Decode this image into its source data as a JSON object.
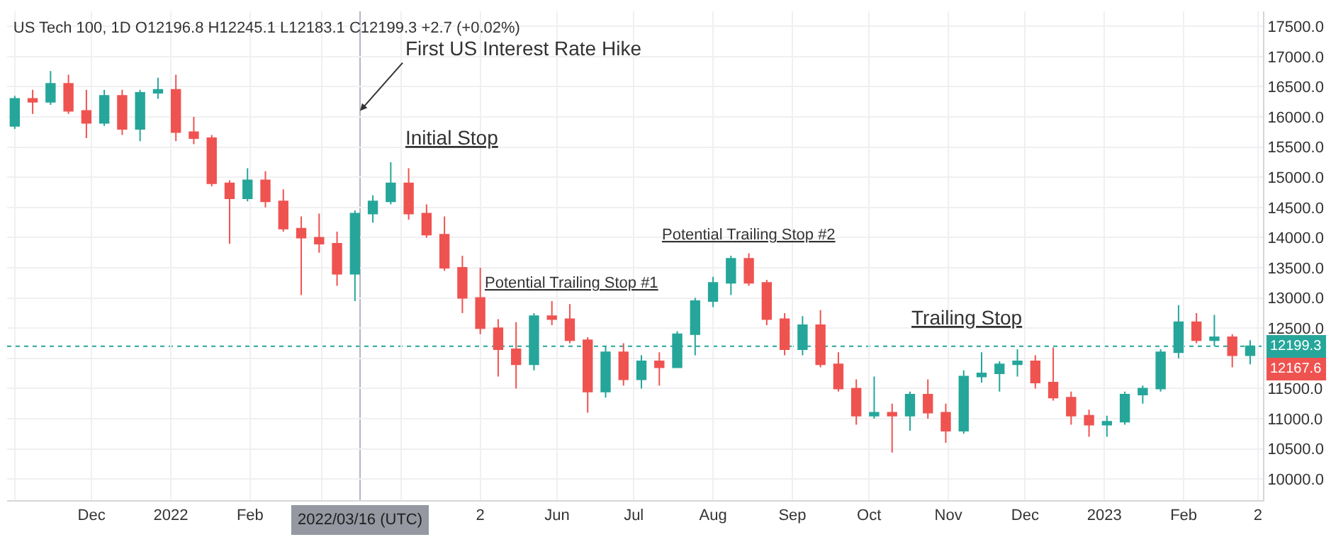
{
  "chart_data": {
    "type": "candlestick",
    "title": "US Tech 100, 1D O12196.8 H12245.1 L12183.1 C12199.3 +2.7 (+0.02%)",
    "x": [
      "2021-11-01",
      "2021-11-08",
      "2021-11-15",
      "2021-11-22",
      "2021-11-29",
      "2021-12-06",
      "2021-12-13",
      "2021-12-20",
      "2021-12-27",
      "2022-01-03",
      "2022-01-10",
      "2022-01-17",
      "2022-01-24",
      "2022-01-31",
      "2022-02-07",
      "2022-02-14",
      "2022-02-21",
      "2022-02-28",
      "2022-03-07",
      "2022-03-14",
      "2022-03-21",
      "2022-03-28",
      "2022-04-04",
      "2022-04-11",
      "2022-04-18",
      "2022-04-25",
      "2022-05-02",
      "2022-05-09",
      "2022-05-16",
      "2022-05-23",
      "2022-05-30",
      "2022-06-06",
      "2022-06-13",
      "2022-06-20",
      "2022-06-27",
      "2022-07-04",
      "2022-07-11",
      "2022-07-18",
      "2022-07-25",
      "2022-08-01",
      "2022-08-08",
      "2022-08-15",
      "2022-08-22",
      "2022-08-29",
      "2022-09-05",
      "2022-09-12",
      "2022-09-19",
      "2022-09-26",
      "2022-10-03",
      "2022-10-10",
      "2022-10-17",
      "2022-10-24",
      "2022-10-31",
      "2022-11-07",
      "2022-11-14",
      "2022-11-21",
      "2022-11-28",
      "2022-12-05",
      "2022-12-12",
      "2022-12-19",
      "2022-12-26",
      "2023-01-02",
      "2023-01-09",
      "2023-01-16",
      "2023-01-23",
      "2023-01-30",
      "2023-02-06",
      "2023-02-13",
      "2023-02-20",
      "2023-02-27"
    ],
    "ohlc": [
      [
        15850,
        16350,
        15800,
        16300
      ],
      [
        16300,
        16450,
        16050,
        16250
      ],
      [
        16250,
        16760,
        16200,
        16550
      ],
      [
        16550,
        16700,
        16050,
        16100
      ],
      [
        16100,
        16450,
        15650,
        15900
      ],
      [
        15900,
        16450,
        15850,
        16350
      ],
      [
        16350,
        16450,
        15700,
        15800
      ],
      [
        15800,
        16450,
        15600,
        16400
      ],
      [
        16400,
        16650,
        16300,
        16450
      ],
      [
        16450,
        16700,
        15600,
        15750
      ],
      [
        15750,
        16000,
        15550,
        15650
      ],
      [
        15650,
        15700,
        14850,
        14900
      ],
      [
        14900,
        14950,
        13900,
        14650
      ],
      [
        14650,
        15150,
        14600,
        14950
      ],
      [
        14950,
        15100,
        14500,
        14600
      ],
      [
        14600,
        14800,
        14100,
        14150
      ],
      [
        14150,
        14350,
        13050,
        14000
      ],
      [
        14000,
        14400,
        13750,
        13900
      ],
      [
        13900,
        14100,
        13200,
        13400
      ],
      [
        13400,
        14450,
        12950,
        14400
      ],
      [
        14400,
        14700,
        14250,
        14600
      ],
      [
        14600,
        15250,
        14550,
        14900
      ],
      [
        14900,
        15150,
        14300,
        14400
      ],
      [
        14400,
        14550,
        14000,
        14050
      ],
      [
        14050,
        14350,
        13450,
        13500
      ],
      [
        13500,
        13700,
        12750,
        13000
      ],
      [
        13000,
        13500,
        12400,
        12500
      ],
      [
        12500,
        12650,
        11700,
        12150
      ],
      [
        12150,
        12600,
        11500,
        11900
      ],
      [
        11900,
        12750,
        11800,
        12700
      ],
      [
        12700,
        12950,
        12550,
        12650
      ],
      [
        12650,
        12900,
        12250,
        12300
      ],
      [
        12300,
        12350,
        11100,
        11450
      ],
      [
        11450,
        12200,
        11350,
        12100
      ],
      [
        12100,
        12250,
        11550,
        11650
      ],
      [
        11650,
        12050,
        11500,
        11950
      ],
      [
        11950,
        12100,
        11550,
        11850
      ],
      [
        11850,
        12450,
        11850,
        12400
      ],
      [
        12400,
        13000,
        12050,
        12950
      ],
      [
        12950,
        13350,
        12850,
        13250
      ],
      [
        13250,
        13700,
        13050,
        13650
      ],
      [
        13650,
        13740,
        13200,
        13250
      ],
      [
        13250,
        13300,
        12550,
        12650
      ],
      [
        12650,
        12750,
        12050,
        12150
      ],
      [
        12150,
        12700,
        12050,
        12550
      ],
      [
        12550,
        12800,
        11850,
        11900
      ],
      [
        11900,
        12100,
        11450,
        11500
      ],
      [
        11500,
        11650,
        10900,
        11050
      ],
      [
        11050,
        11700,
        11000,
        11100
      ],
      [
        11100,
        11250,
        10440,
        11050
      ],
      [
        11050,
        11450,
        10800,
        11400
      ],
      [
        11400,
        11650,
        11000,
        11100
      ],
      [
        11100,
        11250,
        10600,
        10800
      ],
      [
        10800,
        11800,
        10750,
        11700
      ],
      [
        11700,
        12100,
        11600,
        11750
      ],
      [
        11750,
        11950,
        11450,
        11900
      ],
      [
        11900,
        12150,
        11700,
        11950
      ],
      [
        11950,
        12050,
        11500,
        11600
      ],
      [
        11600,
        12180,
        11300,
        11350
      ],
      [
        11350,
        11450,
        10900,
        11050
      ],
      [
        11050,
        11150,
        10700,
        10900
      ],
      [
        10900,
        11050,
        10700,
        10950
      ],
      [
        10950,
        11450,
        10900,
        11400
      ],
      [
        11400,
        11550,
        11250,
        11500
      ],
      [
        11500,
        12150,
        11450,
        12100
      ],
      [
        12100,
        12880,
        12000,
        12600
      ],
      [
        12600,
        12750,
        12250,
        12300
      ],
      [
        12300,
        12720,
        12200,
        12350
      ],
      [
        12350,
        12400,
        11850,
        12050
      ],
      [
        12050,
        12300,
        11900,
        12199.3
      ]
    ],
    "xlim": [
      "2021-10-29",
      "2023-03-04"
    ],
    "xticks": [
      {
        "value": "2021-11-01",
        "label": null
      },
      {
        "value": "2021-12-01",
        "label": "Dec"
      },
      {
        "value": "2022-01-01",
        "label": "2022"
      },
      {
        "value": "2022-02-01",
        "label": "Feb"
      },
      {
        "value": "2022-03-01",
        "label": null
      },
      {
        "value": "2022-04-01",
        "label": null
      },
      {
        "value": "2022-05-02",
        "label": "2"
      },
      {
        "value": "2022-06-01",
        "label": "Jun"
      },
      {
        "value": "2022-07-01",
        "label": "Jul"
      },
      {
        "value": "2022-08-01",
        "label": "Aug"
      },
      {
        "value": "2022-09-01",
        "label": "Sep"
      },
      {
        "value": "2022-10-01",
        "label": "Oct"
      },
      {
        "value": "2022-11-01",
        "label": "Nov"
      },
      {
        "value": "2022-12-01",
        "label": "Dec"
      },
      {
        "value": "2023-01-01",
        "label": "2023"
      },
      {
        "value": "2023-02-01",
        "label": "Feb"
      },
      {
        "value": "2023-03-02",
        "label": "2"
      }
    ],
    "ylim": [
      9650,
      17750
    ],
    "yticks": [
      {
        "value": 10000,
        "label": "10000.0"
      },
      {
        "value": 10500,
        "label": "10500.0"
      },
      {
        "value": 11000,
        "label": "11000.0"
      },
      {
        "value": 11500,
        "label": "11500.0"
      },
      {
        "value": 12000,
        "label": null
      },
      {
        "value": 12500,
        "label": "12500.0"
      },
      {
        "value": 13000,
        "label": "13000.0"
      },
      {
        "value": 13500,
        "label": "13500.0"
      },
      {
        "value": 14000,
        "label": "14000.0"
      },
      {
        "value": 14500,
        "label": "14500.0"
      },
      {
        "value": 15000,
        "label": "15000.0"
      },
      {
        "value": 15500,
        "label": "15500.0"
      },
      {
        "value": 16000,
        "label": "16000.0"
      },
      {
        "value": 16500,
        "label": "16500.0"
      },
      {
        "value": 17000,
        "label": "17000.0"
      },
      {
        "value": 17500,
        "label": "17500.0"
      }
    ],
    "grid": true,
    "ref_lines": [
      {
        "axis": "y",
        "value": 12199.3,
        "label": "12199.3",
        "color": "#26a69a",
        "line_style": "dotted"
      },
      {
        "axis": "x",
        "value": "2022-03-16",
        "label": "2022/03/16 (UTC)",
        "color": "#b2b5be",
        "line_style": "solid"
      }
    ],
    "annotations": [
      {
        "text": "First US Interest Rate Hike",
        "x": "2022-03-16",
        "y": 16100
      },
      "Initial Stop",
      "Potential Trailing Stop #1",
      "Potential Trailing Stop #2",
      "Trailing Stop",
      "12167.6"
    ]
  }
}
